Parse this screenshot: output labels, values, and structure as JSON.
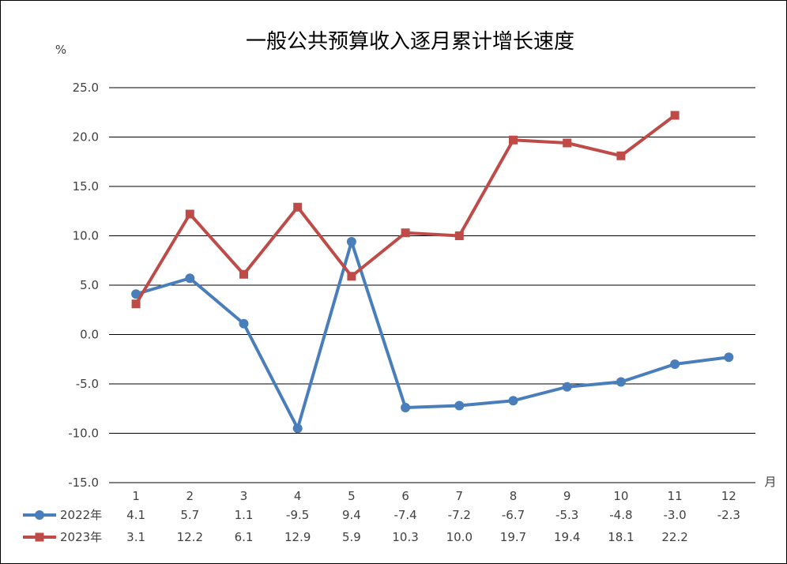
{
  "chart_data": {
    "type": "line",
    "title": "一般公共预算收入逐月累计增长速度",
    "ylabel": "%",
    "xlabel": "月",
    "ylim": [
      -15.0,
      25.0
    ],
    "yticks": [
      "25.0",
      "20.0",
      "15.0",
      "10.0",
      "5.0",
      "0.0",
      "-5.0",
      "-10.0",
      "-15.0"
    ],
    "ytick_values": [
      25,
      20,
      15,
      10,
      5,
      0,
      -5,
      -10,
      -15
    ],
    "categories": [
      "1",
      "2",
      "3",
      "4",
      "5",
      "6",
      "7",
      "8",
      "9",
      "10",
      "11",
      "12"
    ],
    "grid": true,
    "legend": "bottom-left data table",
    "series": [
      {
        "name": "2022年",
        "color": "#4a7ebb",
        "marker": "circle",
        "values": [
          4.1,
          5.7,
          1.1,
          -9.5,
          9.4,
          -7.4,
          -7.2,
          -6.7,
          -5.3,
          -4.8,
          -3.0,
          -2.3
        ],
        "labels": [
          "4.1",
          "5.7",
          "1.1",
          "-9.5",
          "9.4",
          "-7.4",
          "-7.2",
          "-6.7",
          "-5.3",
          "-4.8",
          "-3.0",
          "-2.3"
        ]
      },
      {
        "name": "2023年",
        "color": "#be4b48",
        "marker": "square",
        "values": [
          3.1,
          12.2,
          6.1,
          12.9,
          5.9,
          10.3,
          10.0,
          19.7,
          19.4,
          18.1,
          22.2,
          null
        ],
        "labels": [
          "3.1",
          "12.2",
          "6.1",
          "12.9",
          "5.9",
          "10.3",
          "10.0",
          "19.7",
          "19.4",
          "18.1",
          "22.2",
          ""
        ]
      }
    ]
  }
}
